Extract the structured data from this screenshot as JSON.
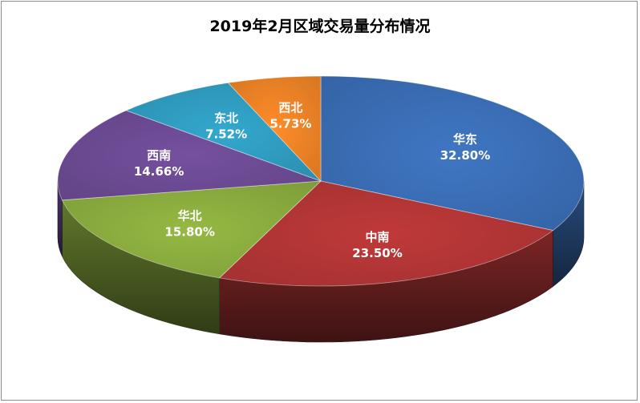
{
  "chart_data": {
    "type": "pie",
    "title": "2019年2月区域交易量分布情况",
    "categories": [
      "华东",
      "中南",
      "华北",
      "西南",
      "东北",
      "西北"
    ],
    "values": [
      32.8,
      23.5,
      15.8,
      14.66,
      7.52,
      5.73
    ],
    "value_labels": [
      "32.80%",
      "23.50%",
      "15.80%",
      "14.66%",
      "7.52%",
      "5.73%"
    ],
    "colors": [
      "#3a6db5",
      "#b23535",
      "#8aab3e",
      "#6c4a93",
      "#2f9cbf",
      "#ec8226"
    ],
    "legend": "none",
    "style": "3d"
  }
}
